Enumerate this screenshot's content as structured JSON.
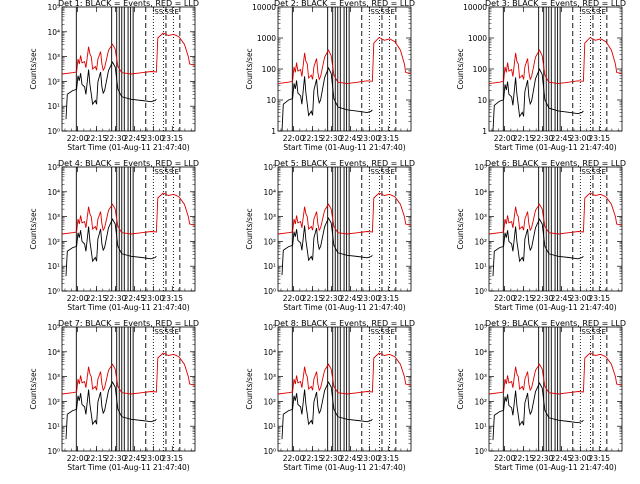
{
  "chart_data": [
    {
      "type": "line",
      "title": "Det 1: BLACK = Events, RED = LLD",
      "scale": "log",
      "ylim": [
        1,
        100000
      ],
      "yticks": [
        "10⁰",
        "10¹",
        "10²",
        "10³",
        "10⁴",
        "10⁵"
      ],
      "ylabel": "Counts/sec",
      "xlabel": "Start Time (01-Aug-11 21:47:40)",
      "xtick_labels": [
        "22:00",
        "22:15",
        "22:30",
        "22:45",
        "23:00",
        "23:15"
      ],
      "x_start": "21:47:40",
      "series": [
        {
          "name": "BLACK",
          "color": "#000000",
          "level": 0.35
        },
        {
          "name": "RED",
          "color": "#dd0000",
          "level": 1.0
        }
      ]
    },
    {
      "type": "line",
      "title": "Det 2: BLACK = Events, RED = LLD",
      "scale": "log",
      "ylim": [
        1,
        10000
      ],
      "yticks": [
        "1",
        "10",
        "100",
        "1000",
        "10000"
      ],
      "ylabel": "Counts/sec",
      "xlabel": "Start Time (01-Aug-11 21:47:40)",
      "xtick_labels": [
        "22:00",
        "22:15",
        "22:30",
        "22:45",
        "23:00",
        "23:15"
      ],
      "x_start": "21:47:40",
      "series": [
        {
          "name": "BLACK",
          "color": "#000000",
          "level": 0.45
        },
        {
          "name": "RED",
          "color": "#dd0000",
          "level": 1.0
        }
      ]
    },
    {
      "type": "line",
      "title": "Det 3: BLACK = Events, RED = LLD",
      "scale": "log",
      "ylim": [
        1,
        10000
      ],
      "yticks": [
        "1",
        "10",
        "100",
        "1000",
        "10000"
      ],
      "ylabel": "Counts/sec",
      "xlabel": "Start Time (01-Aug-11 21:47:40)",
      "xtick_labels": [
        "22:00",
        "22:15",
        "22:30",
        "22:45",
        "23:00",
        "23:15"
      ],
      "x_start": "21:47:40",
      "series": [
        {
          "name": "BLACK",
          "color": "#000000",
          "level": 0.4
        },
        {
          "name": "RED",
          "color": "#dd0000",
          "level": 1.0
        }
      ]
    },
    {
      "type": "line",
      "title": "Det 4: BLACK = Events, RED = LLD",
      "scale": "log",
      "ylim": [
        1,
        100000
      ],
      "yticks": [
        "10⁰",
        "10¹",
        "10²",
        "10³",
        "10⁴",
        "10⁵"
      ],
      "ylabel": "Counts/sec",
      "xlabel": "Start Time (01-Aug-11 21:47:40)",
      "xtick_labels": [
        "22:00",
        "22:15",
        "22:30",
        "22:45",
        "23:00",
        "23:15"
      ],
      "x_start": "21:47:40",
      "series": [
        {
          "name": "BLACK",
          "color": "#000000",
          "level": 0.5
        },
        {
          "name": "RED",
          "color": "#dd0000",
          "level": 1.0
        }
      ]
    },
    {
      "type": "line",
      "title": "Det 5: BLACK = Events, RED = LLD",
      "scale": "log",
      "ylim": [
        1,
        100000
      ],
      "yticks": [
        "10⁰",
        "10¹",
        "10²",
        "10³",
        "10⁴",
        "10⁵"
      ],
      "ylabel": "Counts/sec",
      "xlabel": "Start Time (01-Aug-11 21:47:40)",
      "xtick_labels": [
        "22:00",
        "22:15",
        "22:30",
        "22:45",
        "23:00",
        "23:15"
      ],
      "x_start": "21:47:40",
      "series": [
        {
          "name": "BLACK",
          "color": "#000000",
          "level": 0.55
        },
        {
          "name": "RED",
          "color": "#dd0000",
          "level": 1.0
        }
      ]
    },
    {
      "type": "line",
      "title": "Det 6: BLACK = Events, RED = LLD",
      "scale": "log",
      "ylim": [
        1,
        100000
      ],
      "yticks": [
        "10⁰",
        "10¹",
        "10²",
        "10³",
        "10⁴",
        "10⁵"
      ],
      "ylabel": "Counts/sec",
      "xlabel": "Start Time (01-Aug-11 21:47:40)",
      "xtick_labels": [
        "22:00",
        "22:15",
        "22:30",
        "22:45",
        "23:00",
        "23:15"
      ],
      "x_start": "21:47:40",
      "series": [
        {
          "name": "BLACK",
          "color": "#000000",
          "level": 0.5
        },
        {
          "name": "RED",
          "color": "#dd0000",
          "level": 1.0
        }
      ]
    },
    {
      "type": "line",
      "title": "Det 7: BLACK = Events, RED = LLD",
      "scale": "log",
      "ylim": [
        1,
        100000
      ],
      "yticks": [
        "10⁰",
        "10¹",
        "10²",
        "10³",
        "10⁴",
        "10⁵"
      ],
      "ylabel": "Counts/sec",
      "xlabel": "Start Time (01-Aug-11 21:47:40)",
      "xtick_labels": [
        "22:00",
        "22:15",
        "22:30",
        "22:45",
        "23:00",
        "23:15"
      ],
      "x_start": "21:47:40",
      "series": [
        {
          "name": "BLACK",
          "color": "#000000",
          "level": 0.35
        },
        {
          "name": "RED",
          "color": "#dd0000",
          "level": 1.0
        }
      ]
    },
    {
      "type": "line",
      "title": "Det 8: BLACK = Events, RED = LLD",
      "scale": "log",
      "ylim": [
        1,
        100000
      ],
      "yticks": [
        "10⁰",
        "10¹",
        "10²",
        "10³",
        "10⁴",
        "10⁵"
      ],
      "ylabel": "Counts/sec",
      "xlabel": "Start Time (01-Aug-11 21:47:40)",
      "xtick_labels": [
        "22:00",
        "22:15",
        "22:30",
        "22:45",
        "23:00",
        "23:15"
      ],
      "x_start": "21:47:40",
      "series": [
        {
          "name": "BLACK",
          "color": "#000000",
          "level": 0.35
        },
        {
          "name": "RED",
          "color": "#dd0000",
          "level": 1.0
        }
      ]
    },
    {
      "type": "line",
      "title": "Det 9: BLACK = Events, RED = LLD",
      "scale": "log",
      "ylim": [
        1,
        100000
      ],
      "yticks": [
        "10⁰",
        "10¹",
        "10²",
        "10³",
        "10⁴",
        "10⁵"
      ],
      "ylabel": "Counts/sec",
      "xlabel": "Start Time (01-Aug-11 21:47:40)",
      "xtick_labels": [
        "22:00",
        "22:15",
        "22:30",
        "22:45",
        "23:00",
        "23:15"
      ],
      "x_start": "21:47:40",
      "series": [
        {
          "name": "BLACK",
          "color": "#000000",
          "level": 0.3
        },
        {
          "name": "RED",
          "color": "#dd0000",
          "level": 1.0
        }
      ]
    }
  ],
  "markers": {
    "solid_times": [
      "21:59",
      "22:27",
      "22:31",
      "22:33",
      "22:35",
      "22:37",
      "22:40",
      "22:42",
      "22:44"
    ],
    "dashed_times": [
      "22:54",
      "23:10",
      "23:21"
    ],
    "dotted_times": [
      "23:00",
      "23:08",
      "23:16"
    ],
    "flag_labels": [
      "SS",
      "SS",
      "E"
    ]
  },
  "red_profile": [
    [
      0,
      2.3
    ],
    [
      8,
      2.35
    ],
    [
      11,
      2.38
    ],
    [
      12,
      2.9
    ],
    [
      13,
      2.7
    ],
    [
      14,
      3.05
    ],
    [
      15,
      2.75
    ],
    [
      17,
      2.8
    ],
    [
      18,
      2.55
    ],
    [
      20,
      3.4
    ],
    [
      21,
      3.1
    ],
    [
      22,
      3.0
    ],
    [
      23,
      2.5
    ],
    [
      25,
      2.6
    ],
    [
      26,
      2.45
    ],
    [
      27,
      2.9
    ],
    [
      29,
      3.2
    ],
    [
      30,
      2.7
    ],
    [
      31,
      2.45
    ],
    [
      32,
      2.55
    ],
    [
      35,
      3.25
    ],
    [
      38,
      3.5
    ],
    [
      40,
      3.3
    ],
    [
      42,
      2.6
    ],
    [
      45,
      2.35
    ],
    [
      52,
      2.3
    ],
    [
      60,
      2.35
    ],
    [
      67,
      2.4
    ],
    [
      71,
      2.38
    ],
    [
      72,
      3.75
    ],
    [
      76,
      3.95
    ],
    [
      80,
      3.85
    ],
    [
      84,
      3.9
    ],
    [
      88,
      3.8
    ],
    [
      92,
      3.5
    ],
    [
      95,
      3.0
    ],
    [
      96,
      2.7
    ],
    [
      100,
      2.65
    ]
  ],
  "black_profile": [
    [
      0,
      -9
    ],
    [
      2,
      -9
    ],
    [
      3,
      1.0
    ],
    [
      4,
      2.0
    ],
    [
      8,
      2.15
    ],
    [
      11,
      2.2
    ],
    [
      12,
      2.75
    ],
    [
      13,
      2.55
    ],
    [
      14,
      2.85
    ],
    [
      15,
      2.4
    ],
    [
      17,
      2.3
    ],
    [
      18,
      2.0
    ],
    [
      20,
      3.0
    ],
    [
      21,
      2.4
    ],
    [
      22,
      2.0
    ],
    [
      23,
      1.6
    ],
    [
      25,
      1.75
    ],
    [
      26,
      1.6
    ],
    [
      27,
      2.5
    ],
    [
      29,
      2.9
    ],
    [
      30,
      2.3
    ],
    [
      31,
      2.05
    ],
    [
      32,
      2.15
    ],
    [
      35,
      2.95
    ],
    [
      38,
      3.3
    ],
    [
      40,
      3.1
    ],
    [
      42,
      2.2
    ],
    [
      45,
      1.9
    ],
    [
      52,
      1.8
    ],
    [
      60,
      1.75
    ],
    [
      67,
      1.7
    ],
    [
      70,
      1.75
    ],
    [
      71,
      1.8
    ],
    [
      72,
      -9
    ],
    [
      100,
      -9
    ]
  ]
}
